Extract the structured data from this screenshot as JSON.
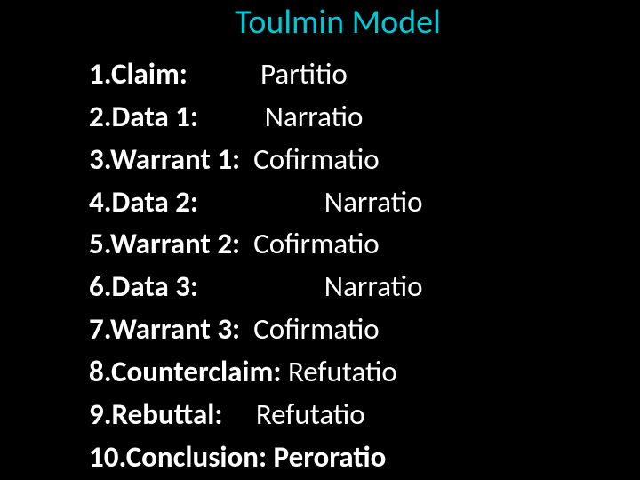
{
  "title": "Toulmin Model",
  "colors": {
    "background": "#000000",
    "title_color": "#00c8d4",
    "text_color": "#ffffff"
  },
  "typography": {
    "title_fontsize": 38,
    "list_fontsize": 33,
    "font_family": "Calibri, Arial, sans-serif"
  },
  "items": [
    {
      "num": "1.",
      "label": "Claim:",
      "spacer": "           ",
      "value": "Partitio",
      "value_bold": false
    },
    {
      "num": "2.",
      "label": "Data 1:",
      "spacer": "          ",
      "value": "Narratio",
      "value_bold": false
    },
    {
      "num": "3.",
      "label": "Warrant 1:",
      "spacer": "  ",
      "value": "Cofirmatio",
      "value_bold": false
    },
    {
      "num": "4.",
      "label": "Data 2:",
      "spacer": "                   ",
      "value": "Narratio",
      "value_bold": false
    },
    {
      "num": "5.",
      "label": "Warrant 2:",
      "spacer": "  ",
      "value": "Cofirmatio",
      "value_bold": false
    },
    {
      "num": "6.",
      "label": "Data 3:",
      "spacer": "                   ",
      "value": "Narratio",
      "value_bold": false
    },
    {
      "num": "7.",
      "label": "Warrant 3:",
      "spacer": "  ",
      "value": "Cofirmatio",
      "value_bold": false
    },
    {
      "num": "8.",
      "label": "Counterclaim:",
      "spacer": " ",
      "value": "Refutatio",
      "value_bold": false
    },
    {
      "num": "9.",
      "label": "Rebuttal:",
      "spacer": "     ",
      "value": "Refutatio",
      "value_bold": false
    },
    {
      "num": "10.",
      "label": "Conclusion:",
      "spacer": " ",
      "value": "Peroratio",
      "value_bold": true
    }
  ]
}
